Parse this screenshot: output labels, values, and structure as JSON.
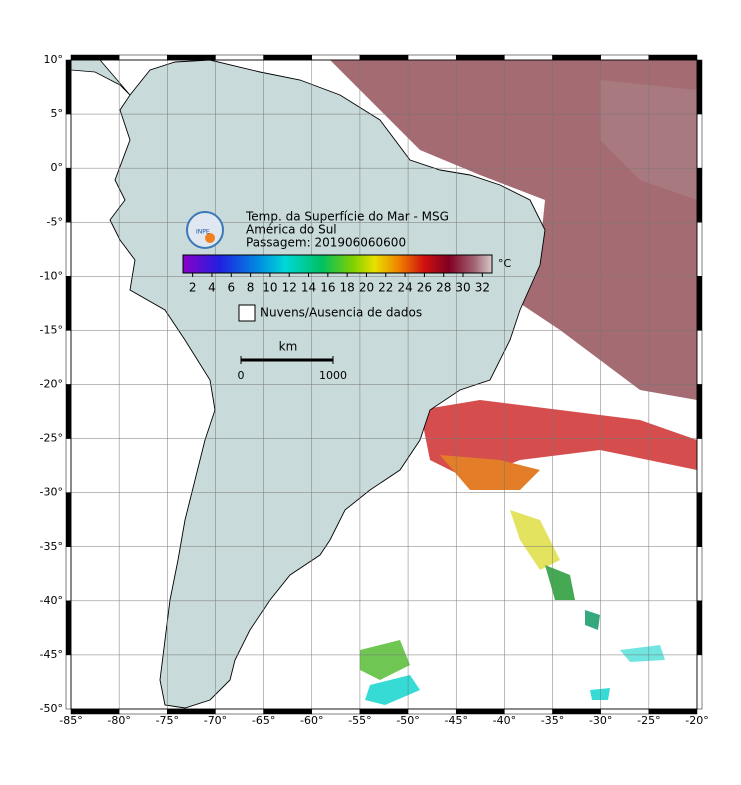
{
  "map": {
    "title_lines": [
      "Temp. da Superfície do Mar - MSG",
      "América do Sul",
      "Passagem: 201906060600"
    ],
    "logo": "INPE",
    "xlim": [
      -85,
      -20
    ],
    "ylim": [
      -50,
      10
    ],
    "xticks": [
      {
        "value": -85,
        "label": "-85°"
      },
      {
        "value": -80,
        "label": "-80°"
      },
      {
        "value": -75,
        "label": "-75°"
      },
      {
        "value": -70,
        "label": "-70°"
      },
      {
        "value": -65,
        "label": "-65°"
      },
      {
        "value": -60,
        "label": "-60°"
      },
      {
        "value": -55,
        "label": "-55°"
      },
      {
        "value": -50,
        "label": "-50°"
      },
      {
        "value": -45,
        "label": "-45°"
      },
      {
        "value": -40,
        "label": "-40°"
      },
      {
        "value": -35,
        "label": "-35°"
      },
      {
        "value": -30,
        "label": "-30°"
      },
      {
        "value": -25,
        "label": "-25°"
      },
      {
        "value": -20,
        "label": "-20°"
      }
    ],
    "yticks": [
      {
        "value": 10,
        "label": "10°"
      },
      {
        "value": 5,
        "label": "5°"
      },
      {
        "value": 0,
        "label": "0°"
      },
      {
        "value": -5,
        "label": "-5°"
      },
      {
        "value": -10,
        "label": "-10°"
      },
      {
        "value": -15,
        "label": "-15°"
      },
      {
        "value": -20,
        "label": "-20°"
      },
      {
        "value": -25,
        "label": "-25°"
      },
      {
        "value": -30,
        "label": "-30°"
      },
      {
        "value": -35,
        "label": "-35°"
      },
      {
        "value": -40,
        "label": "-40°"
      },
      {
        "value": -45,
        "label": "-45°"
      },
      {
        "value": -50,
        "label": "-50°"
      }
    ],
    "grid": true,
    "colorbar": {
      "unit": "°C",
      "lim": [
        1,
        33
      ],
      "ticks": [
        2,
        4,
        6,
        8,
        10,
        12,
        14,
        16,
        18,
        20,
        22,
        24,
        26,
        28,
        30,
        32
      ]
    },
    "legend": "Nuvens/Ausencia de dados",
    "scale": {
      "unit": "km",
      "start": "0",
      "end": "1000"
    }
  }
}
